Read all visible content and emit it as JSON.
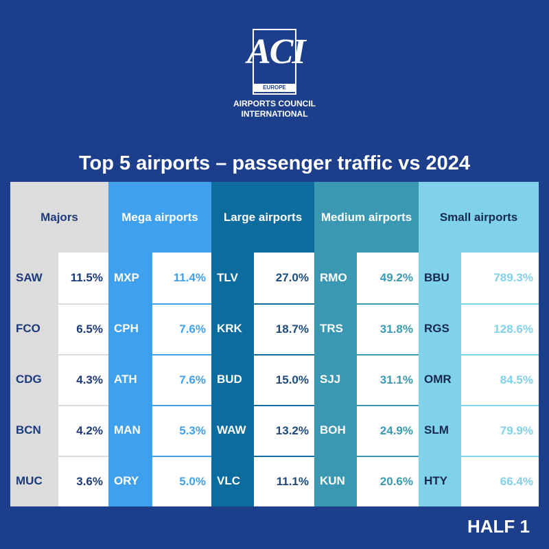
{
  "logo": {
    "mark": "ACI",
    "region": "EUROPE",
    "name_line1": "AIRPORTS COUNCIL",
    "name_line2": "INTERNATIONAL"
  },
  "title": "Top 5 airports – passenger traffic vs 2024",
  "columns": [
    {
      "header": "Majors",
      "rows": [
        [
          "SAW",
          "11.5%"
        ],
        [
          "FCO",
          "6.5%"
        ],
        [
          "CDG",
          "4.3%"
        ],
        [
          "BCN",
          "4.2%"
        ],
        [
          "MUC",
          "3.6%"
        ]
      ]
    },
    {
      "header": "Mega airports",
      "rows": [
        [
          "MXP",
          "11.4%"
        ],
        [
          "CPH",
          "7.6%"
        ],
        [
          "ATH",
          "7.6%"
        ],
        [
          "MAN",
          "5.3%"
        ],
        [
          "ORY",
          "5.0%"
        ]
      ]
    },
    {
      "header": "Large airports",
      "rows": [
        [
          "TLV",
          "27.0%"
        ],
        [
          "KRK",
          "18.7%"
        ],
        [
          "BUD",
          "15.0%"
        ],
        [
          "WAW",
          "13.2%"
        ],
        [
          "VLC",
          "11.1%"
        ]
      ]
    },
    {
      "header": "Medium airports",
      "rows": [
        [
          "RMO",
          "49.2%"
        ],
        [
          "TRS",
          "31.8%"
        ],
        [
          "SJJ",
          "31.1%"
        ],
        [
          "BOH",
          "24.9%"
        ],
        [
          "KUN",
          "20.6%"
        ]
      ]
    },
    {
      "header": "Small airports",
      "rows": [
        [
          "BBU",
          "789.3%"
        ],
        [
          "RGS",
          "128.6%"
        ],
        [
          "OMR",
          "84.5%"
        ],
        [
          "SLM",
          "79.9%"
        ],
        [
          "HTY",
          "66.4%"
        ]
      ]
    }
  ],
  "footer": "HALF 1"
}
